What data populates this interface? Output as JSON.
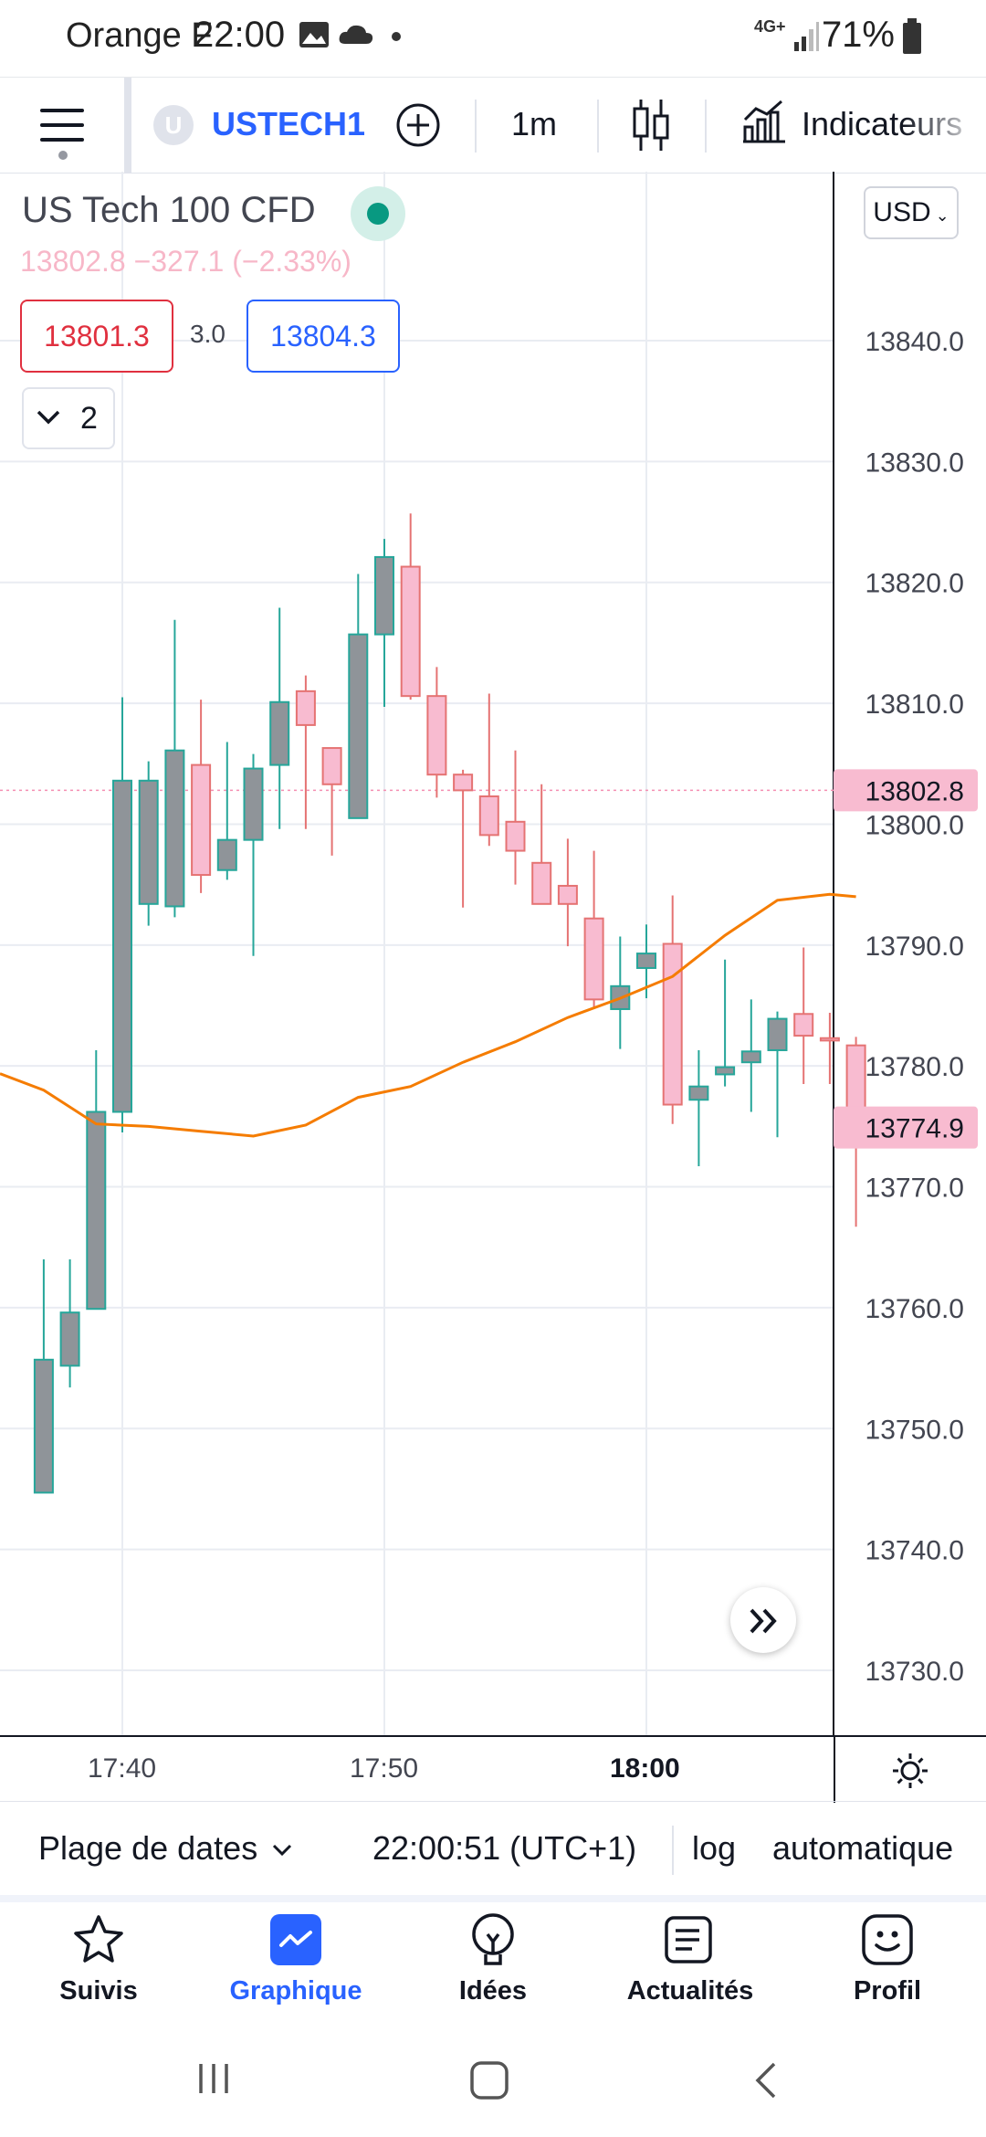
{
  "status_bar": {
    "carrier": "Orange F",
    "time": "22:00",
    "network": "4G+",
    "battery": "71%"
  },
  "toolbar": {
    "symbol_badge": "U",
    "symbol": "USTECH1",
    "interval": "1m",
    "indicators_label": "Indicateurs"
  },
  "instrument": {
    "title": "US Tech 100 CFD",
    "price_line": "13802.8  −327.1 (−2.33%)",
    "bid": "13801.3",
    "spread": "3.0",
    "ask": "13804.3",
    "collapsed_count": "2",
    "currency": "USD"
  },
  "colors": {
    "up_fill": "#8f9499",
    "up_stroke": "#26a69a",
    "down_fill": "#f8bbd0",
    "down_stroke": "#e57373",
    "ma_line": "#f57c00",
    "accent": "#2962ff",
    "price_label_bg": "#f8bbd0"
  },
  "chart_data": {
    "type": "candlestick",
    "interval": "1m",
    "y_ticks": [
      "13730.0",
      "13740.0",
      "13750.0",
      "13760.0",
      "13770.0",
      "13780.0",
      "13790.0",
      "13800.0",
      "13810.0",
      "13820.0",
      "13830.0",
      "13840.0"
    ],
    "ylim": [
      13725,
      13853
    ],
    "x_ticks": [
      "17:40",
      "17:50",
      "18:00"
    ],
    "last_price_label": "13802.8",
    "ma_value_label": "13774.9",
    "candles": [
      {
        "t": "17:37",
        "o": 13744.7,
        "h": 13764,
        "l": 13744.7,
        "c": 13755.7
      },
      {
        "t": "17:38",
        "o": 13755.2,
        "h": 13764,
        "l": 13753.4,
        "c": 13759.6
      },
      {
        "t": "17:39",
        "o": 13759.9,
        "h": 13781.3,
        "l": 13759.9,
        "c": 13776.2
      },
      {
        "t": "17:40",
        "o": 13776.2,
        "h": 13810.5,
        "l": 13774.5,
        "c": 13803.6
      },
      {
        "t": "17:41",
        "o": 13793.4,
        "h": 13805.2,
        "l": 13791.6,
        "c": 13803.6
      },
      {
        "t": "17:42",
        "o": 13793.2,
        "h": 13816.9,
        "l": 13792.3,
        "c": 13806.1
      },
      {
        "t": "17:43",
        "o": 13804.9,
        "h": 13810.3,
        "l": 13794.3,
        "c": 13795.8
      },
      {
        "t": "17:44",
        "o": 13796.2,
        "h": 13806.8,
        "l": 13795.4,
        "c": 13798.7
      },
      {
        "t": "17:45",
        "o": 13798.7,
        "h": 13805.8,
        "l": 13789.1,
        "c": 13804.6
      },
      {
        "t": "17:46",
        "o": 13804.9,
        "h": 13817.9,
        "l": 13799.6,
        "c": 13810.1
      },
      {
        "t": "17:47",
        "o": 13811,
        "h": 13812.3,
        "l": 13799.6,
        "c": 13808.2
      },
      {
        "t": "17:48",
        "o": 13806.3,
        "h": 13806.3,
        "l": 13797.4,
        "c": 13803.3
      },
      {
        "t": "17:49",
        "o": 13800.5,
        "h": 13820.7,
        "l": 13800.5,
        "c": 13815.7
      },
      {
        "t": "17:50",
        "o": 13815.7,
        "h": 13823.6,
        "l": 13809.7,
        "c": 13822.1
      },
      {
        "t": "17:51",
        "o": 13821.3,
        "h": 13825.7,
        "l": 13810.3,
        "c": 13810.6
      },
      {
        "t": "17:52",
        "o": 13810.6,
        "h": 13813,
        "l": 13802.2,
        "c": 13804.1
      },
      {
        "t": "17:53",
        "o": 13804.1,
        "h": 13804.5,
        "l": 13793.1,
        "c": 13802.8
      },
      {
        "t": "17:54",
        "o": 13802.3,
        "h": 13810.8,
        "l": 13798.2,
        "c": 13799.1
      },
      {
        "t": "17:55",
        "o": 13800.2,
        "h": 13806.1,
        "l": 13795,
        "c": 13797.8
      },
      {
        "t": "17:56",
        "o": 13796.8,
        "h": 13803.3,
        "l": 13793.7,
        "c": 13793.4
      },
      {
        "t": "17:57",
        "o": 13794.9,
        "h": 13798.8,
        "l": 13789.9,
        "c": 13793.4
      },
      {
        "t": "17:58",
        "o": 13792.2,
        "h": 13797.8,
        "l": 13784.8,
        "c": 13785.5
      },
      {
        "t": "17:59",
        "o": 13784.7,
        "h": 13790.7,
        "l": 13781.4,
        "c": 13786.6
      },
      {
        "t": "18:00",
        "o": 13788.1,
        "h": 13791.7,
        "l": 13785.6,
        "c": 13789.3
      },
      {
        "t": "18:01",
        "o": 13790.1,
        "h": 13794.1,
        "l": 13775.2,
        "c": 13776.8
      },
      {
        "t": "18:02",
        "o": 13777.2,
        "h": 13781.3,
        "l": 13771.7,
        "c": 13778.3
      },
      {
        "t": "18:03",
        "o": 13779.3,
        "h": 13788.8,
        "l": 13778.3,
        "c": 13779.9
      },
      {
        "t": "18:04",
        "o": 13780.3,
        "h": 13785.5,
        "l": 13776.2,
        "c": 13781.2
      },
      {
        "t": "18:05",
        "o": 13781.3,
        "h": 13784.5,
        "l": 13774.1,
        "c": 13783.9
      },
      {
        "t": "18:06",
        "o": 13784.3,
        "h": 13789.8,
        "l": 13778.5,
        "c": 13782.5
      },
      {
        "t": "18:07",
        "o": 13782.3,
        "h": 13784.4,
        "l": 13778.5,
        "c": 13782.1
      },
      {
        "t": "18:08",
        "o": 13781.7,
        "h": 13782.4,
        "l": 13766.7,
        "c": 13775.5
      }
    ],
    "moving_average": [
      {
        "t": "17:37",
        "v": 13778
      },
      {
        "t": "17:39",
        "v": 13775.2
      },
      {
        "t": "17:41",
        "v": 13775
      },
      {
        "t": "17:43",
        "v": 13774.6
      },
      {
        "t": "17:45",
        "v": 13774.2
      },
      {
        "t": "17:47",
        "v": 13775.1
      },
      {
        "t": "17:49",
        "v": 13777.4
      },
      {
        "t": "17:51",
        "v": 13778.3
      },
      {
        "t": "17:53",
        "v": 13780.3
      },
      {
        "t": "17:55",
        "v": 13782
      },
      {
        "t": "17:57",
        "v": 13784
      },
      {
        "t": "17:59",
        "v": 13785.6
      },
      {
        "t": "18:01",
        "v": 13787.4
      },
      {
        "t": "18:03",
        "v": 13790.8
      },
      {
        "t": "18:05",
        "v": 13793.7
      },
      {
        "t": "18:07",
        "v": 13794.2
      },
      {
        "t": "18:08",
        "v": 13794
      }
    ]
  },
  "bottom_bar": {
    "date_range": "Plage de dates",
    "clock": "22:00:51 (UTC+1)",
    "log": "log",
    "auto": "automatique"
  },
  "nav": {
    "items": [
      {
        "label": "Suivis",
        "icon": "star-icon"
      },
      {
        "label": "Graphique",
        "icon": "chart-icon"
      },
      {
        "label": "Idées",
        "icon": "lightbulb-icon"
      },
      {
        "label": "Actualités",
        "icon": "news-icon"
      },
      {
        "label": "Profil",
        "icon": "smiley-icon"
      }
    ]
  }
}
